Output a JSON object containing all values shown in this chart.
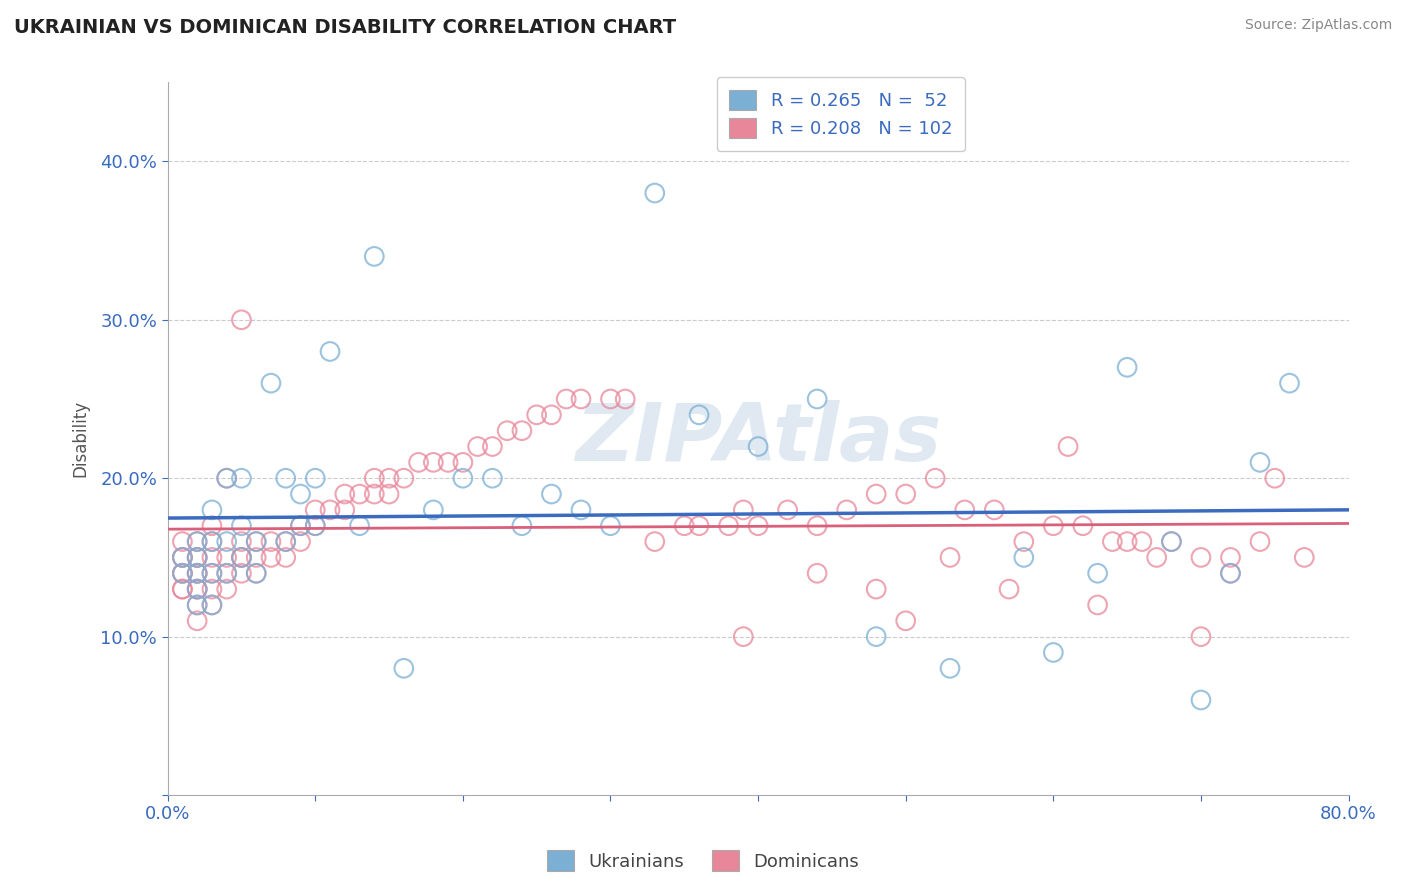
{
  "title": "UKRAINIAN VS DOMINICAN DISABILITY CORRELATION CHART",
  "source": "Source: ZipAtlas.com",
  "ylabel": "Disability",
  "xlim": [
    0.0,
    0.8
  ],
  "ylim": [
    0.0,
    0.45
  ],
  "xticks": [
    0.0,
    0.1,
    0.2,
    0.3,
    0.4,
    0.5,
    0.6,
    0.7,
    0.8
  ],
  "yticks": [
    0.0,
    0.1,
    0.2,
    0.3,
    0.4
  ],
  "xticklabels": [
    "0.0%",
    "",
    "",
    "",
    "",
    "",
    "",
    "",
    "80.0%"
  ],
  "yticklabels": [
    "",
    "10.0%",
    "20.0%",
    "30.0%",
    "40.0%"
  ],
  "blue_R": 0.265,
  "blue_N": 52,
  "pink_R": 0.208,
  "pink_N": 102,
  "blue_color": "#7bafd4",
  "pink_color": "#e8879a",
  "blue_line_color": "#3a6bbf",
  "pink_line_color": "#d9607a",
  "legend_label_blue": "Ukrainians",
  "legend_label_pink": "Dominicans",
  "watermark": "ZIPAtlas",
  "background_color": "#ffffff",
  "grid_color": "#cccccc",
  "blue_x": [
    0.01,
    0.01,
    0.02,
    0.02,
    0.02,
    0.02,
    0.02,
    0.03,
    0.03,
    0.03,
    0.03,
    0.04,
    0.04,
    0.04,
    0.05,
    0.05,
    0.05,
    0.06,
    0.06,
    0.07,
    0.08,
    0.08,
    0.09,
    0.09,
    0.1,
    0.1,
    0.11,
    0.13,
    0.14,
    0.16,
    0.18,
    0.2,
    0.22,
    0.24,
    0.26,
    0.28,
    0.3,
    0.33,
    0.36,
    0.4,
    0.44,
    0.48,
    0.53,
    0.58,
    0.6,
    0.63,
    0.65,
    0.68,
    0.7,
    0.72,
    0.74,
    0.76
  ],
  "blue_y": [
    0.14,
    0.15,
    0.12,
    0.13,
    0.14,
    0.15,
    0.16,
    0.12,
    0.14,
    0.16,
    0.18,
    0.14,
    0.16,
    0.2,
    0.15,
    0.17,
    0.2,
    0.14,
    0.16,
    0.26,
    0.16,
    0.2,
    0.17,
    0.19,
    0.17,
    0.2,
    0.28,
    0.17,
    0.34,
    0.08,
    0.18,
    0.2,
    0.2,
    0.17,
    0.19,
    0.18,
    0.17,
    0.38,
    0.24,
    0.22,
    0.25,
    0.1,
    0.08,
    0.15,
    0.09,
    0.14,
    0.27,
    0.16,
    0.06,
    0.14,
    0.21,
    0.26
  ],
  "pink_x": [
    0.01,
    0.01,
    0.01,
    0.01,
    0.01,
    0.01,
    0.01,
    0.02,
    0.02,
    0.02,
    0.02,
    0.02,
    0.02,
    0.02,
    0.02,
    0.02,
    0.03,
    0.03,
    0.03,
    0.03,
    0.03,
    0.03,
    0.04,
    0.04,
    0.04,
    0.04,
    0.05,
    0.05,
    0.05,
    0.05,
    0.05,
    0.06,
    0.06,
    0.06,
    0.07,
    0.07,
    0.08,
    0.08,
    0.09,
    0.09,
    0.1,
    0.1,
    0.11,
    0.12,
    0.12,
    0.13,
    0.14,
    0.14,
    0.15,
    0.15,
    0.16,
    0.17,
    0.18,
    0.19,
    0.2,
    0.21,
    0.22,
    0.23,
    0.24,
    0.25,
    0.26,
    0.27,
    0.28,
    0.3,
    0.31,
    0.33,
    0.35,
    0.36,
    0.38,
    0.39,
    0.4,
    0.42,
    0.44,
    0.46,
    0.48,
    0.5,
    0.52,
    0.54,
    0.56,
    0.58,
    0.6,
    0.62,
    0.64,
    0.65,
    0.66,
    0.68,
    0.7,
    0.72,
    0.74,
    0.75,
    0.77,
    0.61,
    0.44,
    0.53,
    0.48,
    0.67,
    0.72,
    0.57,
    0.5,
    0.39,
    0.63,
    0.7
  ],
  "pink_y": [
    0.13,
    0.13,
    0.14,
    0.14,
    0.15,
    0.15,
    0.16,
    0.11,
    0.12,
    0.13,
    0.13,
    0.14,
    0.14,
    0.15,
    0.15,
    0.16,
    0.12,
    0.13,
    0.14,
    0.15,
    0.16,
    0.17,
    0.13,
    0.14,
    0.15,
    0.2,
    0.14,
    0.15,
    0.15,
    0.16,
    0.3,
    0.14,
    0.15,
    0.16,
    0.15,
    0.16,
    0.15,
    0.16,
    0.16,
    0.17,
    0.17,
    0.18,
    0.18,
    0.18,
    0.19,
    0.19,
    0.19,
    0.2,
    0.19,
    0.2,
    0.2,
    0.21,
    0.21,
    0.21,
    0.21,
    0.22,
    0.22,
    0.23,
    0.23,
    0.24,
    0.24,
    0.25,
    0.25,
    0.25,
    0.25,
    0.16,
    0.17,
    0.17,
    0.17,
    0.18,
    0.17,
    0.18,
    0.17,
    0.18,
    0.19,
    0.19,
    0.2,
    0.18,
    0.18,
    0.16,
    0.17,
    0.17,
    0.16,
    0.16,
    0.16,
    0.16,
    0.15,
    0.14,
    0.16,
    0.2,
    0.15,
    0.22,
    0.14,
    0.15,
    0.13,
    0.15,
    0.15,
    0.13,
    0.11,
    0.1,
    0.12,
    0.1
  ]
}
